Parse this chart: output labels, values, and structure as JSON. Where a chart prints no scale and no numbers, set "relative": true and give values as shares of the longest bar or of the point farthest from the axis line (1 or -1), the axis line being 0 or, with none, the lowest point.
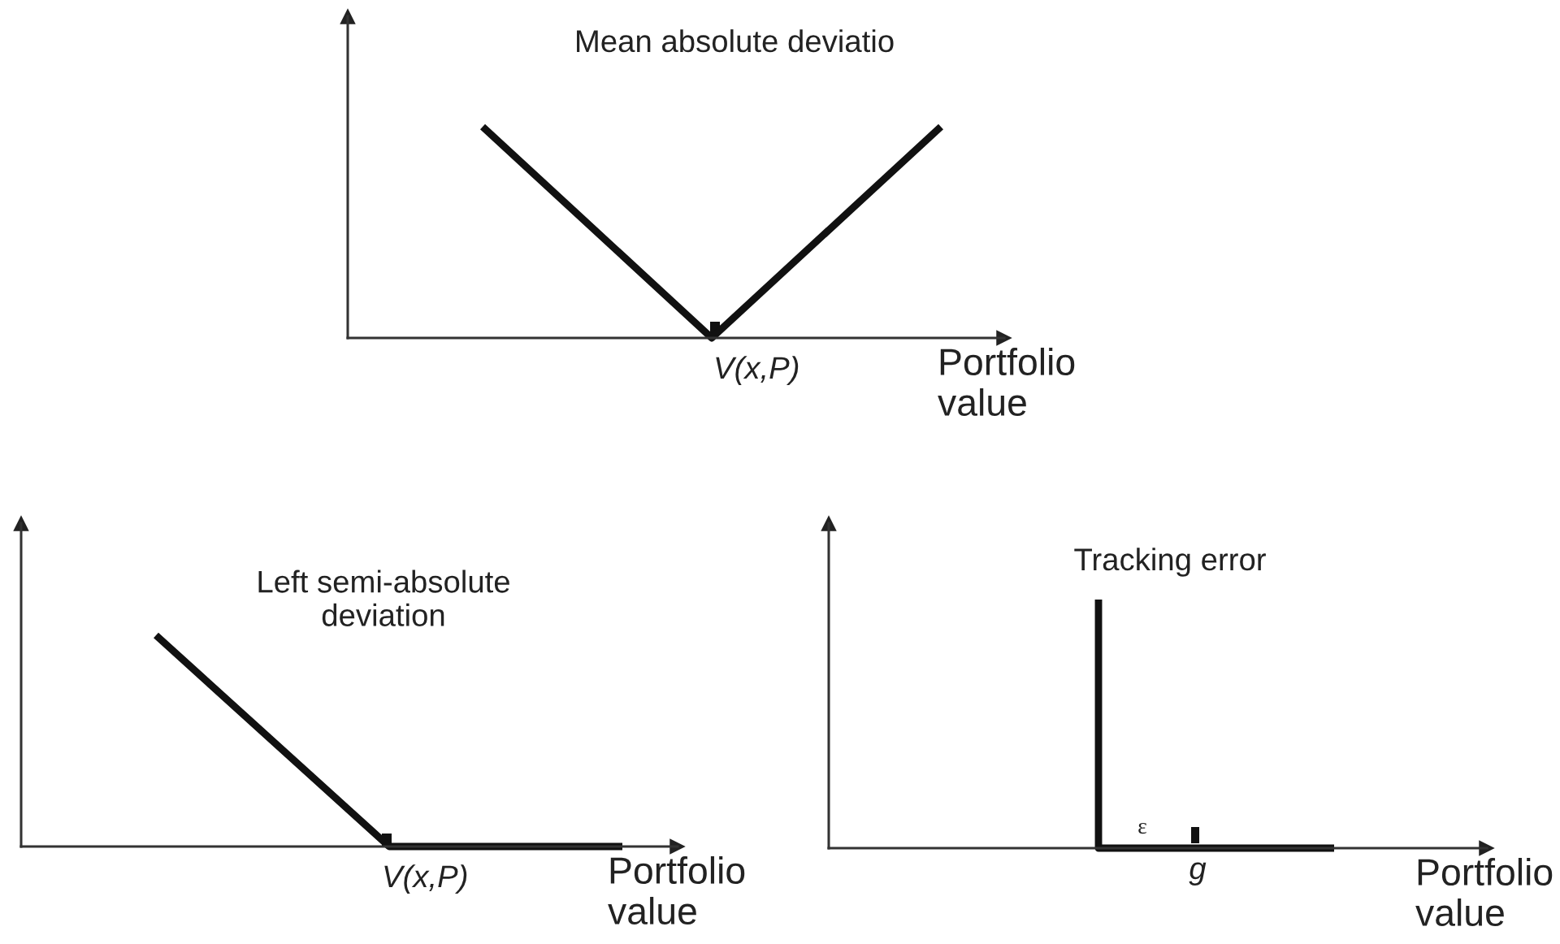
{
  "chart_data": [
    {
      "type": "line",
      "title": "Mean absolute deviatio",
      "xlabel": "Portfolio\nvalue",
      "categories": [
        null,
        null,
        null
      ],
      "series": [
        {
          "color": "#111111",
          "values": [
            1,
            0,
            1
          ]
        }
      ],
      "annotations": [
        "V(x,P)"
      ],
      "relative": true
    },
    {
      "type": "line",
      "title": "Left semi-absolute\ndeviation",
      "xlabel": "Portfolio\nvalue",
      "categories": [
        null,
        null,
        null
      ],
      "series": [
        {
          "color": "#111111",
          "values": [
            1,
            0,
            0
          ]
        }
      ],
      "annotations": [
        "V(x,P)"
      ],
      "relative": true
    },
    {
      "type": "step",
      "title": "Tracking error",
      "xlabel": "Portfolio\nvalue",
      "categories": [
        null,
        null,
        null
      ],
      "series": [
        {
          "color": "#111111",
          "values": [
            1,
            0,
            0
          ]
        }
      ],
      "annotations": [
        "ε",
        "g"
      ],
      "relative": true
    }
  ]
}
